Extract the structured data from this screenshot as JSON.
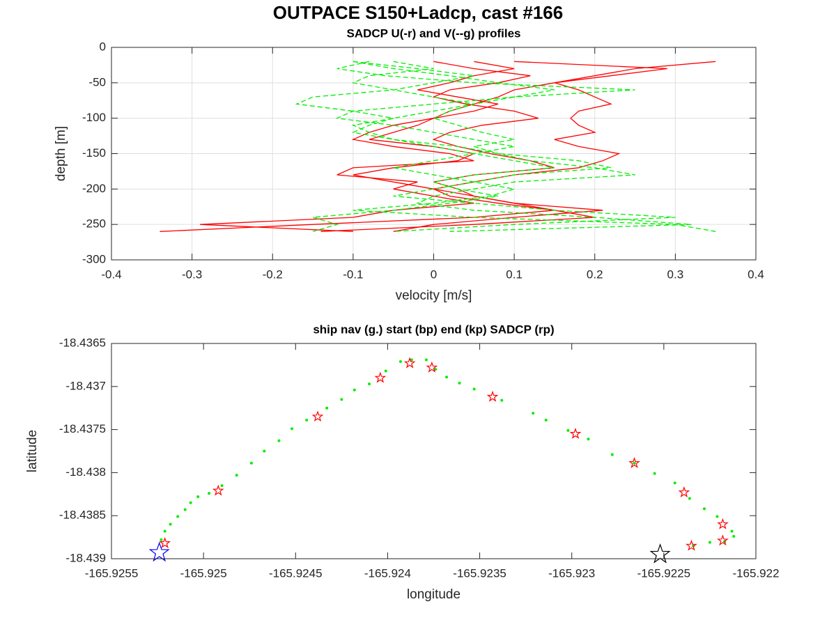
{
  "title": "OUTPACE S150+Ladcp, cast #166",
  "chart_data": [
    {
      "type": "line",
      "title": "SADCP U(-r) and V(--g) profiles",
      "x_label": "velocity [m/s]",
      "y_label": "depth [m]",
      "xlim": [
        -0.4,
        0.4
      ],
      "xticks": [
        -0.4,
        -0.3,
        -0.2,
        -0.1,
        0,
        0.1,
        0.2,
        0.3,
        0.4
      ],
      "ylim": [
        -300,
        0
      ],
      "yticks": [
        -300,
        -250,
        -200,
        -150,
        -100,
        -50,
        0
      ],
      "grid": true,
      "y": [
        -20,
        -30,
        -40,
        -50,
        -60,
        -70,
        -80,
        -90,
        -100,
        -110,
        -120,
        -130,
        -140,
        -150,
        -160,
        -170,
        -180,
        -190,
        -200,
        -210,
        -220,
        -230,
        -240,
        -250,
        -260
      ],
      "series": [
        {
          "color": "#ff0000",
          "line_style": "solid",
          "values": [
            0.35,
            0.25,
            0.2,
            0.15,
            0.1,
            0.08,
            0.05,
            0.02,
            0,
            -0.02,
            -0.05,
            -0.08,
            0,
            0.05,
            0.03,
            -0.05,
            -0.1,
            -0.05,
            0,
            0.05,
            0.1,
            0.15,
            0.05,
            -0.15,
            -0.34
          ]
        },
        {
          "color": "#ff0000",
          "line_style": "solid",
          "values": [
            0.1,
            0.29,
            0.22,
            0.15,
            0.18,
            0.2,
            0.22,
            0.18,
            0.17,
            0.18,
            0.2,
            0.15,
            0.18,
            0.23,
            0.21,
            0.18,
            0.1,
            0.05,
            0,
            0.02,
            0.08,
            0.15,
            0.2,
            0.05,
            -0.14
          ]
        },
        {
          "color": "#ff0000",
          "line_style": "solid",
          "values": [
            0.05,
            0.1,
            0.05,
            0.02,
            -0.02,
            0.03,
            0.08,
            0.05,
            0,
            -0.05,
            -0.08,
            -0.1,
            -0.05,
            0.02,
            0.05,
            -0.1,
            -0.12,
            -0.02,
            -0.05,
            0,
            0.05,
            -0.05,
            -0.1,
            -0.29,
            -0.1
          ]
        },
        {
          "color": "#ff0000",
          "line_style": "solid",
          "values": [
            0,
            0.05,
            0.12,
            0.08,
            0.02,
            0,
            0.04,
            0.1,
            0.13,
            0.06,
            0.02,
            0,
            0.03,
            0.07,
            0.12,
            0.15,
            0.05,
            0,
            0.03,
            0.05,
            0.1,
            0.21,
            0.1,
            0,
            -0.05
          ]
        },
        {
          "color": "#00ee00",
          "line_style": "dashed",
          "values": [
            -0.1,
            -0.05,
            0.02,
            0.08,
            0.15,
            0.1,
            0.05,
            0,
            -0.05,
            -0.1,
            -0.08,
            -0.05,
            0,
            0.05,
            0.1,
            0.15,
            0.05,
            0,
            0.03,
            0.08,
            0.02,
            -0.05,
            -0.15,
            -0.12,
            -0.15
          ]
        },
        {
          "color": "#00ee00",
          "line_style": "dashed",
          "values": [
            -0.08,
            -0.12,
            -0.06,
            0.05,
            0.25,
            0.1,
            0,
            -0.1,
            -0.12,
            -0.05,
            0,
            0.05,
            0.1,
            0.05,
            0,
            -0.05,
            0,
            0.05,
            0.1,
            0.07,
            0,
            -0.1,
            0.05,
            0.3,
            0.35
          ]
        },
        {
          "color": "#00ee00",
          "line_style": "dashed",
          "values": [
            -0.05,
            0,
            -0.08,
            -0.1,
            -0.05,
            -0.15,
            -0.17,
            -0.1,
            -0.05,
            -0.08,
            -0.1,
            -0.05,
            0.03,
            0.08,
            0.18,
            0.22,
            0.1,
            0.05,
            0,
            -0.05,
            0.05,
            0.15,
            0.3,
            0.1,
            -0.05
          ]
        },
        {
          "color": "#00ee00",
          "line_style": "dashed",
          "values": [
            -0.1,
            -0.02,
            0.05,
            0,
            -0.05,
            0,
            0.05,
            0.02,
            0,
            0.03,
            0.06,
            0.1,
            0.05,
            0.08,
            0.12,
            0.2,
            0.25,
            0.1,
            0.05,
            0,
            -0.02,
            0.05,
            0.2,
            0.32,
            0.02
          ]
        }
      ]
    },
    {
      "type": "scatter",
      "title": "ship nav (g.) start (bp) end (kp) SADCP (rp)",
      "x_label": "longitude",
      "y_label": "latitude",
      "xlim": [
        -165.9255,
        -165.922
      ],
      "xticks": [
        -165.9255,
        -165.925,
        -165.9245,
        -165.924,
        -165.9235,
        -165.923,
        -165.9225,
        -165.922
      ],
      "ylim": [
        -18.439,
        -18.4365
      ],
      "yticks": [
        -18.439,
        -18.4385,
        -18.438,
        -18.4375,
        -18.437,
        -18.4365
      ],
      "grid": false,
      "series": [
        {
          "color": "#00ee00",
          "marker": "dot",
          "marker_size": 2,
          "x": [
            -165.92523,
            -165.92521,
            -165.92518,
            -165.92514,
            -165.9251,
            -165.92507,
            -165.92503,
            -165.92497,
            -165.9249,
            -165.92482,
            -165.92474,
            -165.92467,
            -165.92459,
            -165.92452,
            -165.92444,
            -165.92433,
            -165.92425,
            -165.92418,
            -165.9241,
            -165.92401,
            -165.92393,
            -165.92387,
            -165.92379,
            -165.92374,
            -165.92368,
            -165.92361,
            -165.92353,
            -165.92338,
            -165.92321,
            -165.92314,
            -165.92302,
            -165.92291,
            -165.92278,
            -165.92266,
            -165.92255,
            -165.92244,
            -165.92236,
            -165.92228,
            -165.92221,
            -165.92213,
            -165.92212,
            -165.92217,
            -165.92225,
            -165.92234
          ],
          "y": [
            -18.43878,
            -18.43868,
            -18.4386,
            -18.43851,
            -18.43843,
            -18.43835,
            -18.43828,
            -18.43824,
            -18.43815,
            -18.43803,
            -18.43789,
            -18.43775,
            -18.43763,
            -18.43749,
            -18.43739,
            -18.43725,
            -18.43715,
            -18.43704,
            -18.43697,
            -18.43682,
            -18.43671,
            -18.43669,
            -18.43669,
            -18.4368,
            -18.43689,
            -18.43696,
            -18.43703,
            -18.43716,
            -18.43731,
            -18.43739,
            -18.43751,
            -18.43761,
            -18.43779,
            -18.43789,
            -18.43801,
            -18.43812,
            -18.4383,
            -18.43842,
            -18.43851,
            -18.43868,
            -18.43874,
            -18.4388,
            -18.43881,
            -18.43885
          ]
        },
        {
          "color": "#ff0000",
          "marker": "star",
          "marker_size": 7,
          "x": [
            -165.92521,
            -165.92492,
            -165.92438,
            -165.92404,
            -165.92388,
            -165.92376,
            -165.92343,
            -165.92298,
            -165.92266,
            -165.92239,
            -165.92218,
            -165.92218,
            -165.92235
          ],
          "y": [
            -18.43882,
            -18.43821,
            -18.43735,
            -18.4369,
            -18.43673,
            -18.43678,
            -18.43712,
            -18.43755,
            -18.43789,
            -18.43823,
            -18.4386,
            -18.43879,
            -18.43885
          ]
        },
        {
          "color": "#0000ff",
          "marker": "star",
          "marker_size": 14,
          "x": [
            -165.92524
          ],
          "y": [
            -18.43893
          ]
        },
        {
          "color": "#000000",
          "marker": "star",
          "marker_size": 14,
          "x": [
            -165.92252
          ],
          "y": [
            -18.43895
          ]
        }
      ]
    }
  ]
}
